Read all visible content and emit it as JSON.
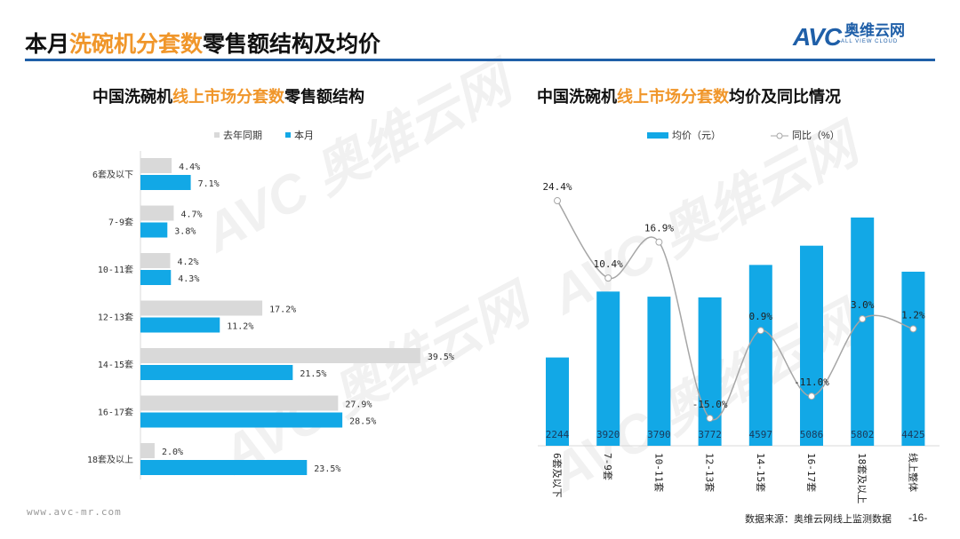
{
  "header": {
    "title_pre": "本月",
    "title_hl": "洗碗机分套数",
    "title_post": "零售额结构及均价",
    "logo_text": "AVC",
    "logo_cn": "奥维云网",
    "logo_en": "ALL VIEW CLOUD"
  },
  "colors": {
    "blue": "#12a8e6",
    "grey": "#d9d9d9",
    "orange": "#f0962a",
    "line": "#a6a6a6"
  },
  "chart_data": [
    {
      "type": "bar",
      "orientation": "horizontal",
      "title_pre": "中国洗碗机",
      "title_hl": "线上市场分套数",
      "title_post": "零售额结构",
      "categories": [
        "6套及以下",
        "7-9套",
        "10-11套",
        "12-13套",
        "14-15套",
        "16-17套",
        "18套及以上"
      ],
      "series": [
        {
          "name": "去年同期",
          "values": [
            4.4,
            4.7,
            4.2,
            17.2,
            39.5,
            27.9,
            2.0
          ],
          "labels": [
            "4.4%",
            "4.7%",
            "4.2%",
            "17.2%",
            "39.5%",
            "27.9%",
            "2.0%"
          ]
        },
        {
          "name": "本月",
          "values": [
            7.1,
            3.8,
            4.3,
            11.2,
            21.5,
            28.5,
            23.5
          ],
          "labels": [
            "7.1%",
            "3.8%",
            "4.3%",
            "11.2%",
            "21.5%",
            "28.5%",
            "23.5%"
          ]
        }
      ],
      "unit": "%",
      "legend": "top"
    },
    {
      "type": "bar+line",
      "title_pre": "中国洗碗机",
      "title_hl": "线上市场分套数",
      "title_post": "均价及同比情况",
      "categories": [
        "6套及以下",
        "7-9套",
        "10-11套",
        "12-13套",
        "14-15套",
        "16-17套",
        "18套及以上",
        "线上整体"
      ],
      "bar_series": {
        "name": "均价（元）",
        "values": [
          2244,
          3920,
          3790,
          3772,
          4597,
          5086,
          5802,
          4425
        ],
        "labels": [
          "2244",
          "3920",
          "3790",
          "3772",
          "4597",
          "5086",
          "5802",
          "4425"
        ]
      },
      "line_series": {
        "name": "同比（%）",
        "values": [
          24.4,
          10.4,
          16.9,
          -15.0,
          0.9,
          -11.0,
          3.0,
          1.2
        ],
        "labels": [
          "24.4%",
          "10.4%",
          "16.9%",
          "-15.0%",
          "0.9%",
          "-11.0%",
          "3.0%",
          "1.2%"
        ]
      },
      "legend": "top"
    }
  ],
  "footer": {
    "url": "www.avc-mr.com",
    "source": "数据来源：奥维云网线上监测数据",
    "page": "-16-"
  }
}
